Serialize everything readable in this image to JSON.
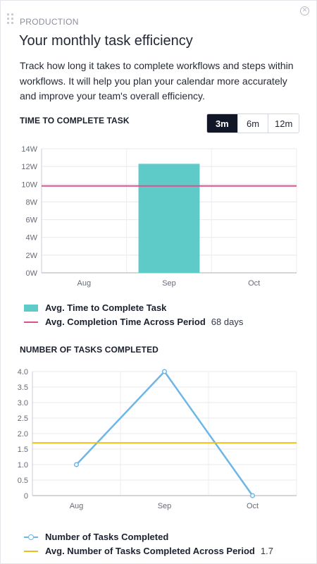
{
  "header": {
    "kicker": "PRODUCTION",
    "title": "Your monthly task efficiency",
    "description": "Track how long it takes to complete workflows and steps within workflows. It will help you plan your calendar more accurately and improve your team's overall efficiency.",
    "close_symbol": "✕"
  },
  "icons": {
    "drag": "drag-handle-icon",
    "close": "close-icon"
  },
  "range_toggle": {
    "options": [
      "3m",
      "6m",
      "12m"
    ],
    "selected": "3m"
  },
  "colors": {
    "bar": "#5ecbc8",
    "avg_time_line": "#e0508c",
    "tasks_line": "#6cb6e8",
    "avg_tasks_line": "#e8c21a",
    "toggle_active": "#111726"
  },
  "chart_data": [
    {
      "type": "bar",
      "title": "TIME TO COMPLETE TASK",
      "categories": [
        "Aug",
        "Sep",
        "Oct"
      ],
      "series": [
        {
          "name": "Avg. Time to Complete Task",
          "values": [
            0,
            12.3,
            0
          ]
        }
      ],
      "reference_line": {
        "name": "Avg. Completion Time Across Period",
        "value": 9.8,
        "label": "68 days"
      },
      "y_ticks": [
        "0W",
        "2W",
        "4W",
        "6W",
        "8W",
        "10W",
        "12W",
        "14W"
      ],
      "ylim": [
        0,
        14
      ],
      "grid": true,
      "legend_position": "bottom"
    },
    {
      "type": "line",
      "title": "NUMBER OF TASKS COMPLETED",
      "categories": [
        "Aug",
        "Sep",
        "Oct"
      ],
      "series": [
        {
          "name": "Number of Tasks Completed",
          "values": [
            1.0,
            4.0,
            0.0
          ]
        }
      ],
      "reference_line": {
        "name": "Avg. Number of Tasks Completed Across Period",
        "value": 1.7,
        "label": "1.7"
      },
      "y_ticks": [
        "0",
        "0.5",
        "1.0",
        "1.5",
        "2.0",
        "2.5",
        "3.0",
        "3.5",
        "4.0"
      ],
      "ylim": [
        0,
        4
      ],
      "grid": true,
      "legend_position": "bottom"
    }
  ]
}
